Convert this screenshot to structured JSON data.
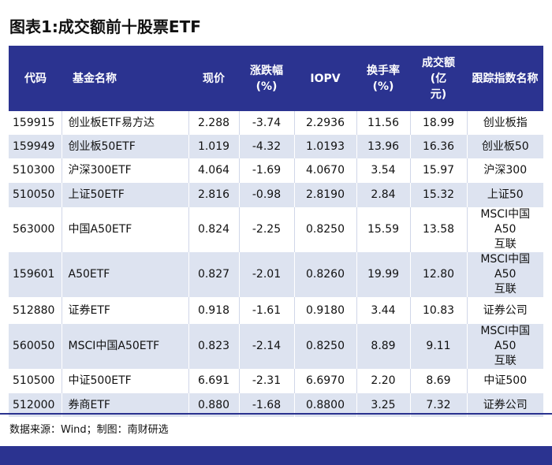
{
  "title": "图表1:成交额前十股票ETF",
  "headers": {
    "code": "代码",
    "name": "基金名称",
    "price": "现价",
    "change_l1": "涨跌幅",
    "change_l2": "(%)",
    "iopv": "IOPV",
    "turnover_l1": "换手率",
    "turnover_l2": "(%)",
    "amount_l1": "成交额",
    "amount_l2": "(亿",
    "amount_l3": "元)",
    "index": "跟踪指数名称"
  },
  "rows": [
    {
      "code": "159915",
      "name": "创业板ETF易方达",
      "price": "2.288",
      "change": "-3.74",
      "iopv": "2.2936",
      "turnover": "11.56",
      "amount": "18.99",
      "index_l1": "创业板指",
      "index_l2": ""
    },
    {
      "code": "159949",
      "name": "创业板50ETF",
      "price": "1.019",
      "change": "-4.32",
      "iopv": "1.0193",
      "turnover": "13.96",
      "amount": "16.36",
      "index_l1": "创业板50",
      "index_l2": ""
    },
    {
      "code": "510300",
      "name": "沪深300ETF",
      "price": "4.064",
      "change": "-1.69",
      "iopv": "4.0670",
      "turnover": "3.54",
      "amount": "15.97",
      "index_l1": "沪深300",
      "index_l2": ""
    },
    {
      "code": "510050",
      "name": "上证50ETF",
      "price": "2.816",
      "change": "-0.98",
      "iopv": "2.8190",
      "turnover": "2.84",
      "amount": "15.32",
      "index_l1": "上证50",
      "index_l2": ""
    },
    {
      "code": "563000",
      "name": "中国A50ETF",
      "price": "0.824",
      "change": "-2.25",
      "iopv": "0.8250",
      "turnover": "15.59",
      "amount": "13.58",
      "index_l1": "MSCI中国A50",
      "index_l2": "互联"
    },
    {
      "code": "159601",
      "name": "A50ETF",
      "price": "0.827",
      "change": "-2.01",
      "iopv": "0.8260",
      "turnover": "19.99",
      "amount": "12.80",
      "index_l1": "MSCI中国A50",
      "index_l2": "互联"
    },
    {
      "code": "512880",
      "name": "证券ETF",
      "price": "0.918",
      "change": "-1.61",
      "iopv": "0.9180",
      "turnover": "3.44",
      "amount": "10.83",
      "index_l1": "证券公司",
      "index_l2": ""
    },
    {
      "code": "560050",
      "name": "MSCI中国A50ETF",
      "price": "0.823",
      "change": "-2.14",
      "iopv": "0.8250",
      "turnover": "8.89",
      "amount": "9.11",
      "index_l1": "MSCI中国A50",
      "index_l2": "互联"
    },
    {
      "code": "510500",
      "name": "中证500ETF",
      "price": "6.691",
      "change": "-2.31",
      "iopv": "6.6970",
      "turnover": "2.20",
      "amount": "8.69",
      "index_l1": "中证500",
      "index_l2": ""
    },
    {
      "code": "512000",
      "name": "券商ETF",
      "price": "0.880",
      "change": "-1.68",
      "iopv": "0.8800",
      "turnover": "3.25",
      "amount": "7.32",
      "index_l1": "证券公司",
      "index_l2": ""
    }
  ],
  "source": "数据来源：Wind；制图：南财研选",
  "colors": {
    "header_bg": "#2b3390",
    "stripe": "#dde3f0"
  }
}
